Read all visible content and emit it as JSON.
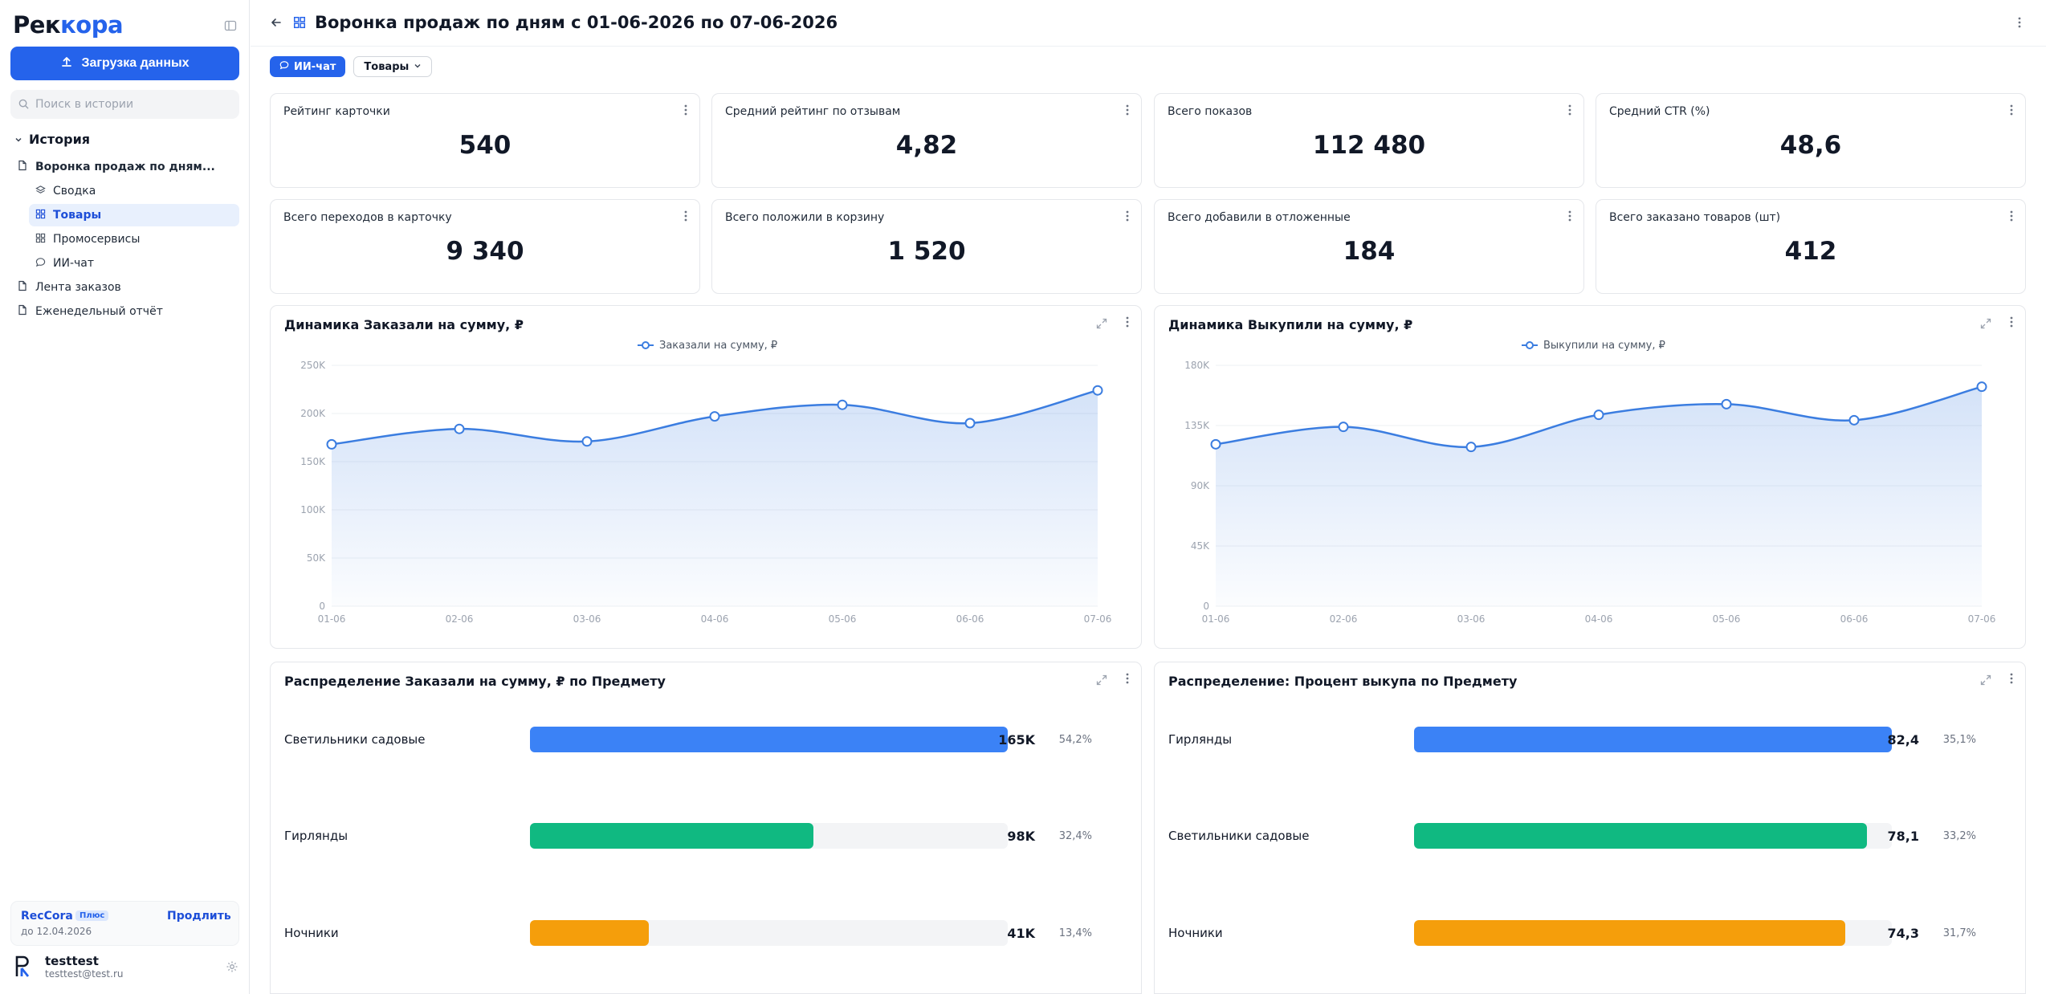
{
  "app": {
    "logo_part1": "Рек",
    "logo_part2": "кора",
    "upload_label": "Загрузка данных",
    "search_placeholder": "Поиск в истории",
    "history_label": "История",
    "history": {
      "report_title": "Воронка продаж по дням...",
      "children": [
        "Сводка",
        "Товары",
        "Промосервисы",
        "ИИ-чат"
      ],
      "other": [
        "Лента заказов",
        "Еженедельный отчёт"
      ]
    },
    "plan": {
      "name": "RecCora",
      "badge": "Плюс",
      "until": "до 12.04.2026",
      "renew": "Продлить"
    },
    "user": {
      "name": "testtest",
      "email": "testtest@test.ru"
    }
  },
  "header": {
    "title": "Воронка продаж по дням с 01-06-2026 по 07-06-2026",
    "chip_ai": "ИИ-чат",
    "chip_goods": "Товары"
  },
  "kpis": [
    {
      "label": "Рейтинг карточки",
      "value": "540"
    },
    {
      "label": "Средний рейтинг по отзывам",
      "value": "4,82"
    },
    {
      "label": "Всего показов",
      "value": "112 480"
    },
    {
      "label": "Средний CTR (%)",
      "value": "48,6"
    },
    {
      "label": "Всего переходов в карточку",
      "value": "9 340"
    },
    {
      "label": "Всего положили в корзину",
      "value": "1 520"
    },
    {
      "label": "Всего добавили в отложенные",
      "value": "184"
    },
    {
      "label": "Всего заказано товаров (шт)",
      "value": "412"
    }
  ],
  "colors": {
    "accent": "#2563eb",
    "line": "#3b7de0",
    "green": "#10b981",
    "orange": "#f59e0b",
    "blue_bar": "#3b82f6"
  },
  "chart_data": [
    {
      "type": "area",
      "title": "Динамика Заказали на сумму, ₽",
      "x": [
        "01-06",
        "02-06",
        "03-06",
        "04-06",
        "05-06",
        "06-06",
        "07-06"
      ],
      "series": [
        {
          "name": "Заказали на сумму, ₽",
          "values": [
            168000,
            184000,
            171000,
            197000,
            209000,
            190000,
            224000
          ]
        }
      ],
      "ylim": [
        0,
        250000
      ],
      "yticks": [
        "0",
        "50K",
        "100K",
        "150K",
        "200K",
        "250K"
      ],
      "ytick_values": [
        0,
        50000,
        100000,
        150000,
        200000,
        250000
      ],
      "legend": "top-center",
      "grid": true
    },
    {
      "type": "area",
      "title": "Динамика Выкупили на сумму, ₽",
      "x": [
        "01-06",
        "02-06",
        "03-06",
        "04-06",
        "05-06",
        "06-06",
        "07-06"
      ],
      "series": [
        {
          "name": "Выкупили на сумму, ₽",
          "values": [
            121000,
            134000,
            119000,
            143000,
            151000,
            139000,
            164000
          ]
        }
      ],
      "ylim": [
        0,
        180000
      ],
      "yticks": [
        "0",
        "45K",
        "90K",
        "135K",
        "180K"
      ],
      "ytick_values": [
        0,
        45000,
        90000,
        135000,
        180000
      ],
      "legend": "top-center",
      "grid": true
    },
    {
      "type": "bar",
      "title": "Распределение Заказали на сумму, ₽ по Предмету",
      "categories": [
        "Светильники садовые",
        "Гирлянды",
        "Ночники"
      ],
      "values": [
        165,
        98,
        41
      ],
      "value_labels": [
        "165K",
        "98K",
        "41K"
      ],
      "percent_labels": [
        "54,2%",
        "32,4%",
        "13,4%"
      ],
      "max": 165
    },
    {
      "type": "bar",
      "title": "Распределение: Процент выкупа по Предмету",
      "categories": [
        "Гирлянды",
        "Светильники садовые",
        "Ночники"
      ],
      "values": [
        82.4,
        78.1,
        74.3
      ],
      "value_labels": [
        "82,4",
        "78,1",
        "74,3"
      ],
      "percent_labels": [
        "35,1%",
        "33,2%",
        "31,7%"
      ],
      "max": 82.4
    }
  ]
}
